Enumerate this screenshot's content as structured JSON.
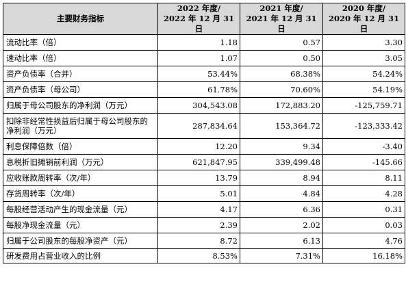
{
  "header": {
    "label": "主要财务指标",
    "years": [
      {
        "line1": "2022 年度/",
        "line2": "2022 年 12 月 31 日"
      },
      {
        "line1": "2021 年度/",
        "line2": "2021 年 12 月 31 日"
      },
      {
        "line1": "2020 年度/",
        "line2": "2020 年 12 月 31 日"
      }
    ]
  },
  "rows": [
    {
      "label": "流动比率（倍）",
      "values": [
        "1.18",
        "0.57",
        "3.30"
      ]
    },
    {
      "label": "速动比率（倍）",
      "values": [
        "1.07",
        "0.50",
        "3.05"
      ]
    },
    {
      "label": "资产负债率（合并）",
      "values": [
        "53.44%",
        "68.38%",
        "54.24%"
      ]
    },
    {
      "label": "资产负债率（母公司）",
      "values": [
        "61.78%",
        "70.60%",
        "54.19%"
      ]
    },
    {
      "label": "归属于母公司股东的净利润（万元）",
      "values": [
        "304,543.08",
        "172,883.20",
        "-125,759.71"
      ]
    },
    {
      "label": "扣除非经常性损益后归属于母公司股东的净利润（万元）",
      "values": [
        "287,834.64",
        "153,364.72",
        "-123,333.42"
      ]
    },
    {
      "label": "利息保障倍数（倍）",
      "values": [
        "12.20",
        "9.34",
        "-3.40"
      ]
    },
    {
      "label": "息税折旧摊销前利润（万元）",
      "values": [
        "621,847.95",
        "339,499.48",
        "-145.66"
      ]
    },
    {
      "label": "应收账款周转率（次/年）",
      "values": [
        "13.79",
        "8.94",
        "8.11"
      ]
    },
    {
      "label": "存货周转率（次/年）",
      "values": [
        "5.01",
        "4.84",
        "4.28"
      ]
    },
    {
      "label": "每股经营活动产生的现金流量（元）",
      "values": [
        "4.17",
        "6.36",
        "0.31"
      ]
    },
    {
      "label": "每股净现金流量（元）",
      "values": [
        "2.39",
        "2.02",
        "0.03"
      ]
    },
    {
      "label": "归属于公司股东的每股净资产（元）",
      "values": [
        "8.72",
        "6.13",
        "4.76"
      ]
    },
    {
      "label": "研发费用占营业收入的比例",
      "values": [
        "8.53%",
        "7.31%",
        "16.18%"
      ]
    }
  ]
}
